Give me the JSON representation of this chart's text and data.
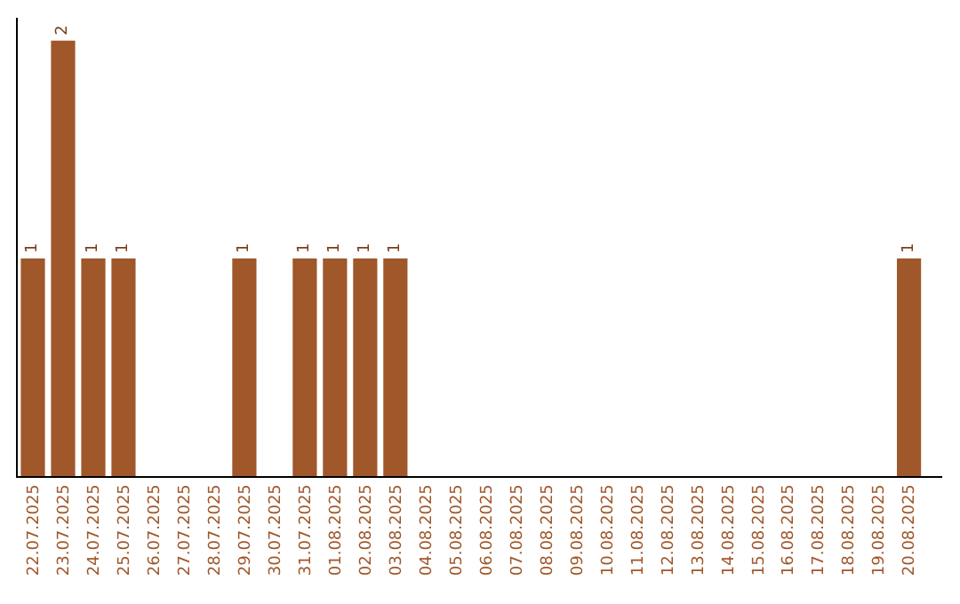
{
  "chart_data": {
    "type": "bar",
    "categories": [
      "22.07.2025",
      "23.07.2025",
      "24.07.2025",
      "25.07.2025",
      "26.07.2025",
      "27.07.2025",
      "28.07.2025",
      "29.07.2025",
      "30.07.2025",
      "31.07.2025",
      "01.08.2025",
      "02.08.2025",
      "03.08.2025",
      "04.08.2025",
      "05.08.2025",
      "06.08.2025",
      "07.08.2025",
      "08.08.2025",
      "09.08.2025",
      "10.08.2025",
      "11.08.2025",
      "12.08.2025",
      "13.08.2025",
      "14.08.2025",
      "15.08.2025",
      "16.08.2025",
      "17.08.2025",
      "18.08.2025",
      "19.08.2025",
      "20.08.2025"
    ],
    "values": [
      1,
      2,
      1,
      1,
      0,
      0,
      0,
      1,
      0,
      1,
      1,
      1,
      1,
      0,
      0,
      0,
      0,
      0,
      0,
      0,
      0,
      0,
      0,
      0,
      0,
      0,
      0,
      0,
      0,
      1
    ],
    "value_labels": [
      "1",
      "2",
      "1",
      "1",
      null,
      null,
      null,
      "1",
      null,
      "1",
      "1",
      "1",
      "1",
      null,
      null,
      null,
      null,
      null,
      null,
      null,
      null,
      null,
      null,
      null,
      null,
      null,
      null,
      null,
      null,
      "1"
    ],
    "color": "#a0572a",
    "tick_labels": "x"
  }
}
